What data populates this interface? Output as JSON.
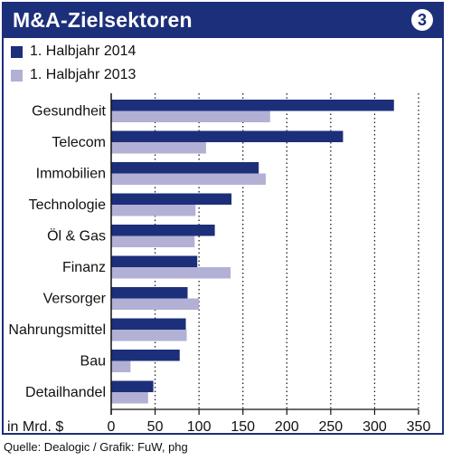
{
  "header": {
    "title": "M&A-Zielsektoren",
    "badge": "3"
  },
  "source": "Quelle: Dealogic / Grafik: FuW, phg",
  "colors": {
    "series_2014": "#1c2f7a",
    "series_2013": "#b2b0d4",
    "grid": "#222222"
  },
  "chart_data": {
    "type": "bar",
    "orientation": "horizontal",
    "categories": [
      "Gesundheit",
      "Telecom",
      "Immobilien",
      "Technologie",
      "Öl & Gas",
      "Finanz",
      "Versorger",
      "Nahrungsmittel",
      "Bau",
      "Detailhandel"
    ],
    "series": [
      {
        "name": "1. Halbjahr 2014",
        "values": [
          322,
          264,
          168,
          137,
          118,
          98,
          87,
          85,
          78,
          48
        ]
      },
      {
        "name": "1. Halbjahr 2013",
        "values": [
          181,
          108,
          176,
          96,
          95,
          136,
          100,
          86,
          22,
          42
        ]
      }
    ],
    "xlabel": "in Mrd. $",
    "xlim": [
      0,
      350
    ],
    "xticks": [
      "0",
      "50",
      "100",
      "150",
      "200",
      "250",
      "300",
      "350"
    ],
    "grid": "dotted vertical",
    "legend": "top-left"
  }
}
